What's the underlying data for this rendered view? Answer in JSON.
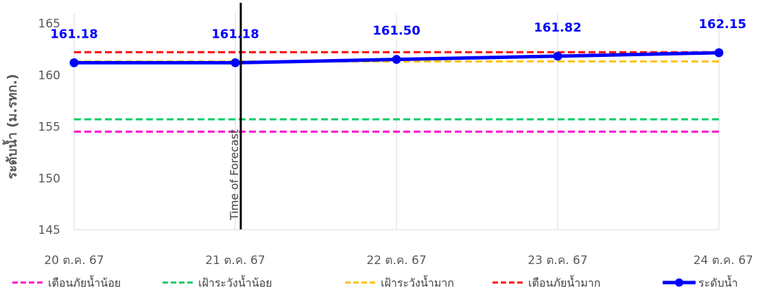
{
  "chart_data": {
    "type": "line",
    "title": "",
    "xlabel": "",
    "ylabel": "ระดับน้ำ (ม.รทก.)",
    "ylim": [
      145,
      165
    ],
    "yticks": [
      145,
      150,
      155,
      160,
      165
    ],
    "categories": [
      "20 ต.ค. 67",
      "21 ต.ค. 67",
      "22 ต.ค. 67",
      "23 ต.ค. 67",
      "24 ต.ค. 67"
    ],
    "grid": "vertical",
    "legend_position": "bottom",
    "series": [
      {
        "name": "เตือนภัยน้ำน้อย",
        "style": "dashed",
        "color": "#ff00cc",
        "values": [
          154.5,
          154.5,
          154.5,
          154.5,
          154.5
        ]
      },
      {
        "name": "เฝ้าระวังน้ำน้อย",
        "style": "dashed",
        "color": "#00cc66",
        "values": [
          155.7,
          155.7,
          155.7,
          155.7,
          155.7
        ]
      },
      {
        "name": "เฝ้าระวังน้ำมาก",
        "style": "dashed",
        "color": "#ffc000",
        "values": [
          161.3,
          161.3,
          161.3,
          161.3,
          161.3
        ]
      },
      {
        "name": "เตือนภัยน้ำมาก",
        "style": "dashed",
        "color": "#ff0000",
        "values": [
          162.2,
          162.2,
          162.2,
          162.2,
          162.2
        ]
      },
      {
        "name": "ระดับน้ำ",
        "style": "solid-markers",
        "color": "#0000ff",
        "values": [
          161.18,
          161.18,
          161.5,
          161.82,
          162.15
        ],
        "labels": [
          "161.18",
          "161.18",
          "161.50",
          "161.82",
          "162.15"
        ]
      }
    ],
    "annotations": [
      {
        "text": "Time of Forecast",
        "x_category_index": 1,
        "color": "#000000"
      }
    ]
  }
}
